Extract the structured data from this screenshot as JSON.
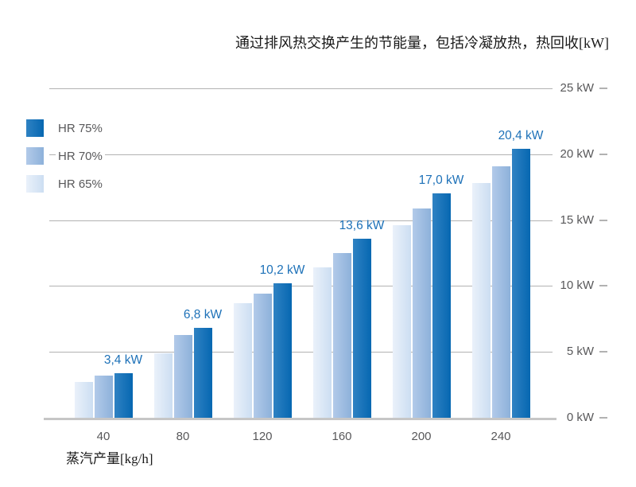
{
  "chart_data": {
    "type": "bar",
    "title": "通过排风热交换产生的节能量，包括冷凝放热，热回收[kW]",
    "xlabel": "蒸汽产量[kg/h]",
    "ylabel": "kW",
    "ylim": [
      0,
      25
    ],
    "grid": true,
    "legend_position": "top-left",
    "categories": [
      "40",
      "80",
      "120",
      "160",
      "200",
      "240"
    ],
    "yticks": [
      {
        "value": 25,
        "label": "25 kW"
      },
      {
        "value": 20,
        "label": "20 kW"
      },
      {
        "value": 15,
        "label": "15 kW"
      },
      {
        "value": 10,
        "label": "10 kW"
      },
      {
        "value": 5,
        "label": "5 kW"
      },
      {
        "value": 0,
        "label": "0 kW"
      }
    ],
    "series": [
      {
        "name": "HR 65%",
        "values": [
          2.7,
          4.9,
          8.7,
          11.4,
          14.6,
          17.8
        ],
        "color_from": "#eaf1fa",
        "color_to": "#ccdef2"
      },
      {
        "name": "HR 70%",
        "values": [
          3.2,
          6.3,
          9.4,
          12.5,
          15.9,
          19.1
        ],
        "color_from": "#b2cae9",
        "color_to": "#8db1da"
      },
      {
        "name": "HR 75%",
        "values": [
          3.4,
          6.8,
          10.2,
          13.6,
          17.0,
          20.4
        ],
        "value_labels": [
          "3,4 kW",
          "6,8 kW",
          "10,2 kW",
          "13,6 kW",
          "17,0 kW",
          "20,4 kW"
        ],
        "color_from": "#2f82c3",
        "color_to": "#0667b1"
      }
    ]
  },
  "colors": {
    "value_label": "#1d71b8",
    "axis_text": "#58585a",
    "gridline": "#b2b2b2",
    "title_text": "#1a1a1a",
    "background": "#ffffff"
  }
}
